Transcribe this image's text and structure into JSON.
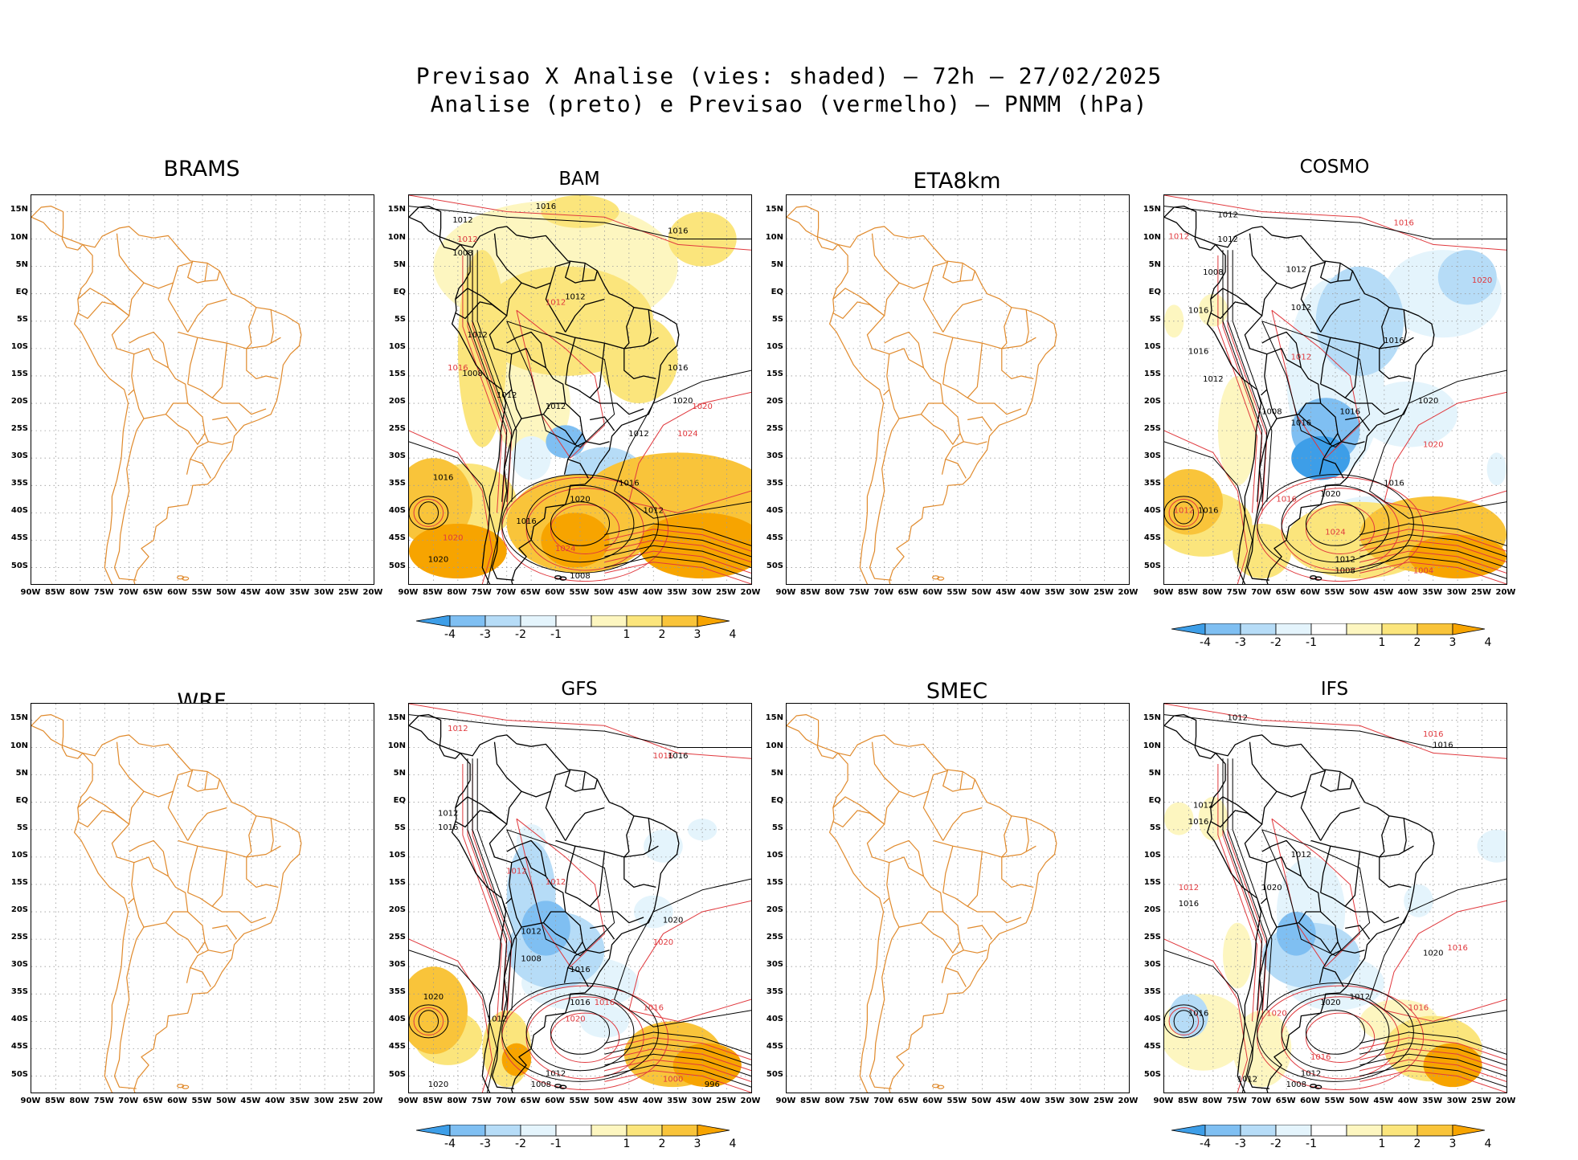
{
  "title_line1": "Previsao X Analise (vies: shaded) – 72h – 27/02/2025",
  "title_line2": "Analise (preto) e Previsao (vermelho) – PNMM (hPa)",
  "lat_labels": [
    "15N",
    "10N",
    "5N",
    "EQ",
    "5S",
    "10S",
    "15S",
    "20S",
    "25S",
    "30S",
    "35S",
    "40S",
    "45S",
    "50S"
  ],
  "lon_labels": [
    "90W",
    "85W",
    "80W",
    "75W",
    "70W",
    "65W",
    "60W",
    "55W",
    "50W",
    "45W",
    "40W",
    "35W",
    "30W",
    "25W",
    "20W"
  ],
  "colorbar_labels": [
    "-4",
    "-3",
    "-2",
    "-1",
    "1",
    "2",
    "3",
    "4"
  ],
  "colors": {
    "coastline": "#e08a2c",
    "analysis_contour": "#000000",
    "forecast_contour": "#e0393e",
    "bias_neg4": "#3d9ee8",
    "bias_neg3": "#7fbff2",
    "bias_neg2": "#b6dcf7",
    "bias_neg1": "#e4f4fc",
    "bias_pos1": "#fdf6c0",
    "bias_pos2": "#fbe57c",
    "bias_pos3": "#f9c43a",
    "bias_pos4": "#f7a400"
  },
  "panels": [
    {
      "id": "brams",
      "title": "BRAMS",
      "has_data": false
    },
    {
      "id": "bam",
      "title": "BAM",
      "has_data": true
    },
    {
      "id": "eta8km",
      "title": "ETA8km",
      "has_data": false
    },
    {
      "id": "cosmo",
      "title": "COSMO",
      "has_data": true
    },
    {
      "id": "wrf",
      "title": "WRF",
      "has_data": false
    },
    {
      "id": "gfs",
      "title": "GFS",
      "has_data": true
    },
    {
      "id": "smec",
      "title": "SMEC",
      "has_data": false
    },
    {
      "id": "ifs",
      "title": "IFS",
      "has_data": true
    }
  ],
  "contour_labels": {
    "bam": [
      "1012",
      "1016",
      "1016",
      "1012",
      "1008",
      "1012",
      "1012",
      "1012",
      "1008",
      "1016",
      "1012",
      "1012",
      "1016",
      "1020",
      "1024",
      "1016",
      "1016",
      "1020",
      "1016",
      "1012",
      "1020",
      "1024",
      "1008",
      "1020",
      "1012",
      "1020"
    ],
    "cosmo": [
      "1012",
      "1016",
      "1012",
      "1012",
      "1008",
      "1012",
      "1016",
      "1012",
      "1016",
      "1012",
      "1016",
      "1008",
      "1012",
      "1016",
      "1020",
      "1016",
      "1020",
      "1016",
      "1020",
      "1016",
      "1024",
      "1012",
      "1008",
      "1004",
      "1016",
      "1012",
      "1020"
    ],
    "gfs": [
      "1012",
      "1016",
      "1016",
      "1012",
      "1016",
      "1012",
      "1012",
      "1008",
      "1012",
      "1016",
      "1020",
      "1020",
      "1016",
      "1020",
      "1016",
      "1012",
      "1020",
      "1016",
      "1000",
      "996",
      "1020",
      "1008",
      "1012"
    ],
    "ifs": [
      "1012",
      "1016",
      "1016",
      "1012",
      "1016",
      "1012",
      "1012",
      "1016",
      "1020",
      "1020",
      "1016",
      "1012",
      "1016",
      "1020",
      "1016",
      "1016",
      "1020",
      "1012",
      "1008",
      "1012"
    ]
  }
}
